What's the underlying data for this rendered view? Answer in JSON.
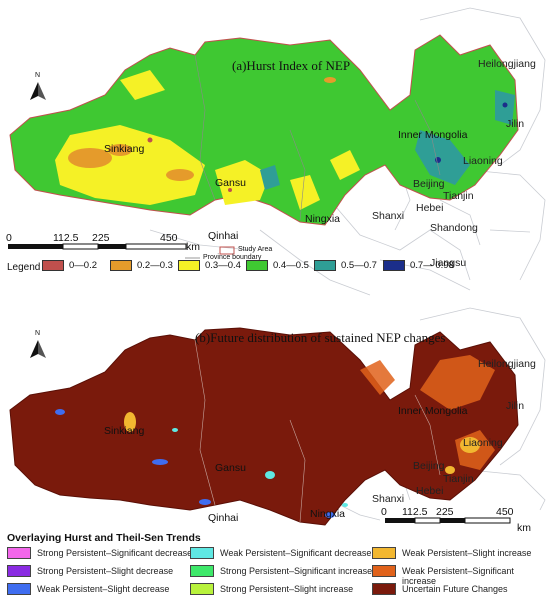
{
  "panel_a": {
    "title": "(a)Hurst Index of  NEP",
    "north": "N",
    "scale": {
      "ticks": [
        "0",
        "112.5",
        "225",
        "450"
      ],
      "unit": "km"
    },
    "study_area_label": "Study Area",
    "province_boundary_label": "Province boundary",
    "legend_label": "Legend",
    "legend": [
      {
        "label": "0—0.2",
        "color": "#c0504d"
      },
      {
        "label": "0.2—0.3",
        "color": "#e59b2b"
      },
      {
        "label": "0.3—0.4",
        "color": "#f5f126"
      },
      {
        "label": "0.4—0.5",
        "color": "#3fc832"
      },
      {
        "label": "0.5—0.7",
        "color": "#2f9e96"
      },
      {
        "label": "0.7— 0.98",
        "color": "#1b2e8a"
      }
    ],
    "provinces": {
      "heilongjiang": "Heilongjiang",
      "jilin": "Jilin",
      "inner_mongolia": "Inner Mongolia",
      "liaoning": "Liaoning",
      "beijing": "Beijing",
      "tianjin": "Tianjin",
      "hebei": "Hebei",
      "shanxi": "Shanxi",
      "shandong": "Shandong",
      "jiangsu": "Jiangsu",
      "sinkiang": "Sinkiang",
      "gansu": "Gansu",
      "qinhai": "Qinhai",
      "ningxia": "Ningxia"
    }
  },
  "panel_b": {
    "title": "(b)Future distribution of sustained NEP changes",
    "north": "N",
    "scale": {
      "ticks": [
        "0",
        "112.5",
        "225",
        "450"
      ],
      "unit": "km"
    },
    "legend_title": "Overlaying Hurst and Theil-Sen Trends",
    "legend": [
      {
        "label": "Strong Persistent–Significant decrease",
        "color": "#f266ea"
      },
      {
        "label": "Strong Persistent–Slight decrease",
        "color": "#8a2be2"
      },
      {
        "label": "Weak Persistent–Slight  decrease",
        "color": "#3f6df0"
      },
      {
        "label": "Weak Persistent–Significant decrease",
        "color": "#5fe8e3"
      },
      {
        "label": "Strong Persistent–Significant increase",
        "color": "#3ee86a"
      },
      {
        "label": "Strong Persistent–Slight increase",
        "color": "#b8f23c"
      },
      {
        "label": "Weak Persistent–Slight increase",
        "color": "#f2b730"
      },
      {
        "label": "Weak Persistent–Significant increase",
        "color": "#e0621b"
      },
      {
        "label": "Uncertain Future Changes",
        "color": "#7a1a0c"
      }
    ],
    "provinces": {
      "heilongjiang": "Heilongjiang",
      "jilin": "Jilin",
      "inner_mongolia": "Inner Mongolia",
      "liaoning": "Liaoning",
      "beijing": "Beijing",
      "tianjin": "Tianjin",
      "hebei": "Hebei",
      "shanxi": "Shanxi",
      "sinkiang": "Sinkiang",
      "gansu": "Gansu",
      "qinhai": "Qinhai",
      "ningxia": "Ningxia"
    }
  }
}
